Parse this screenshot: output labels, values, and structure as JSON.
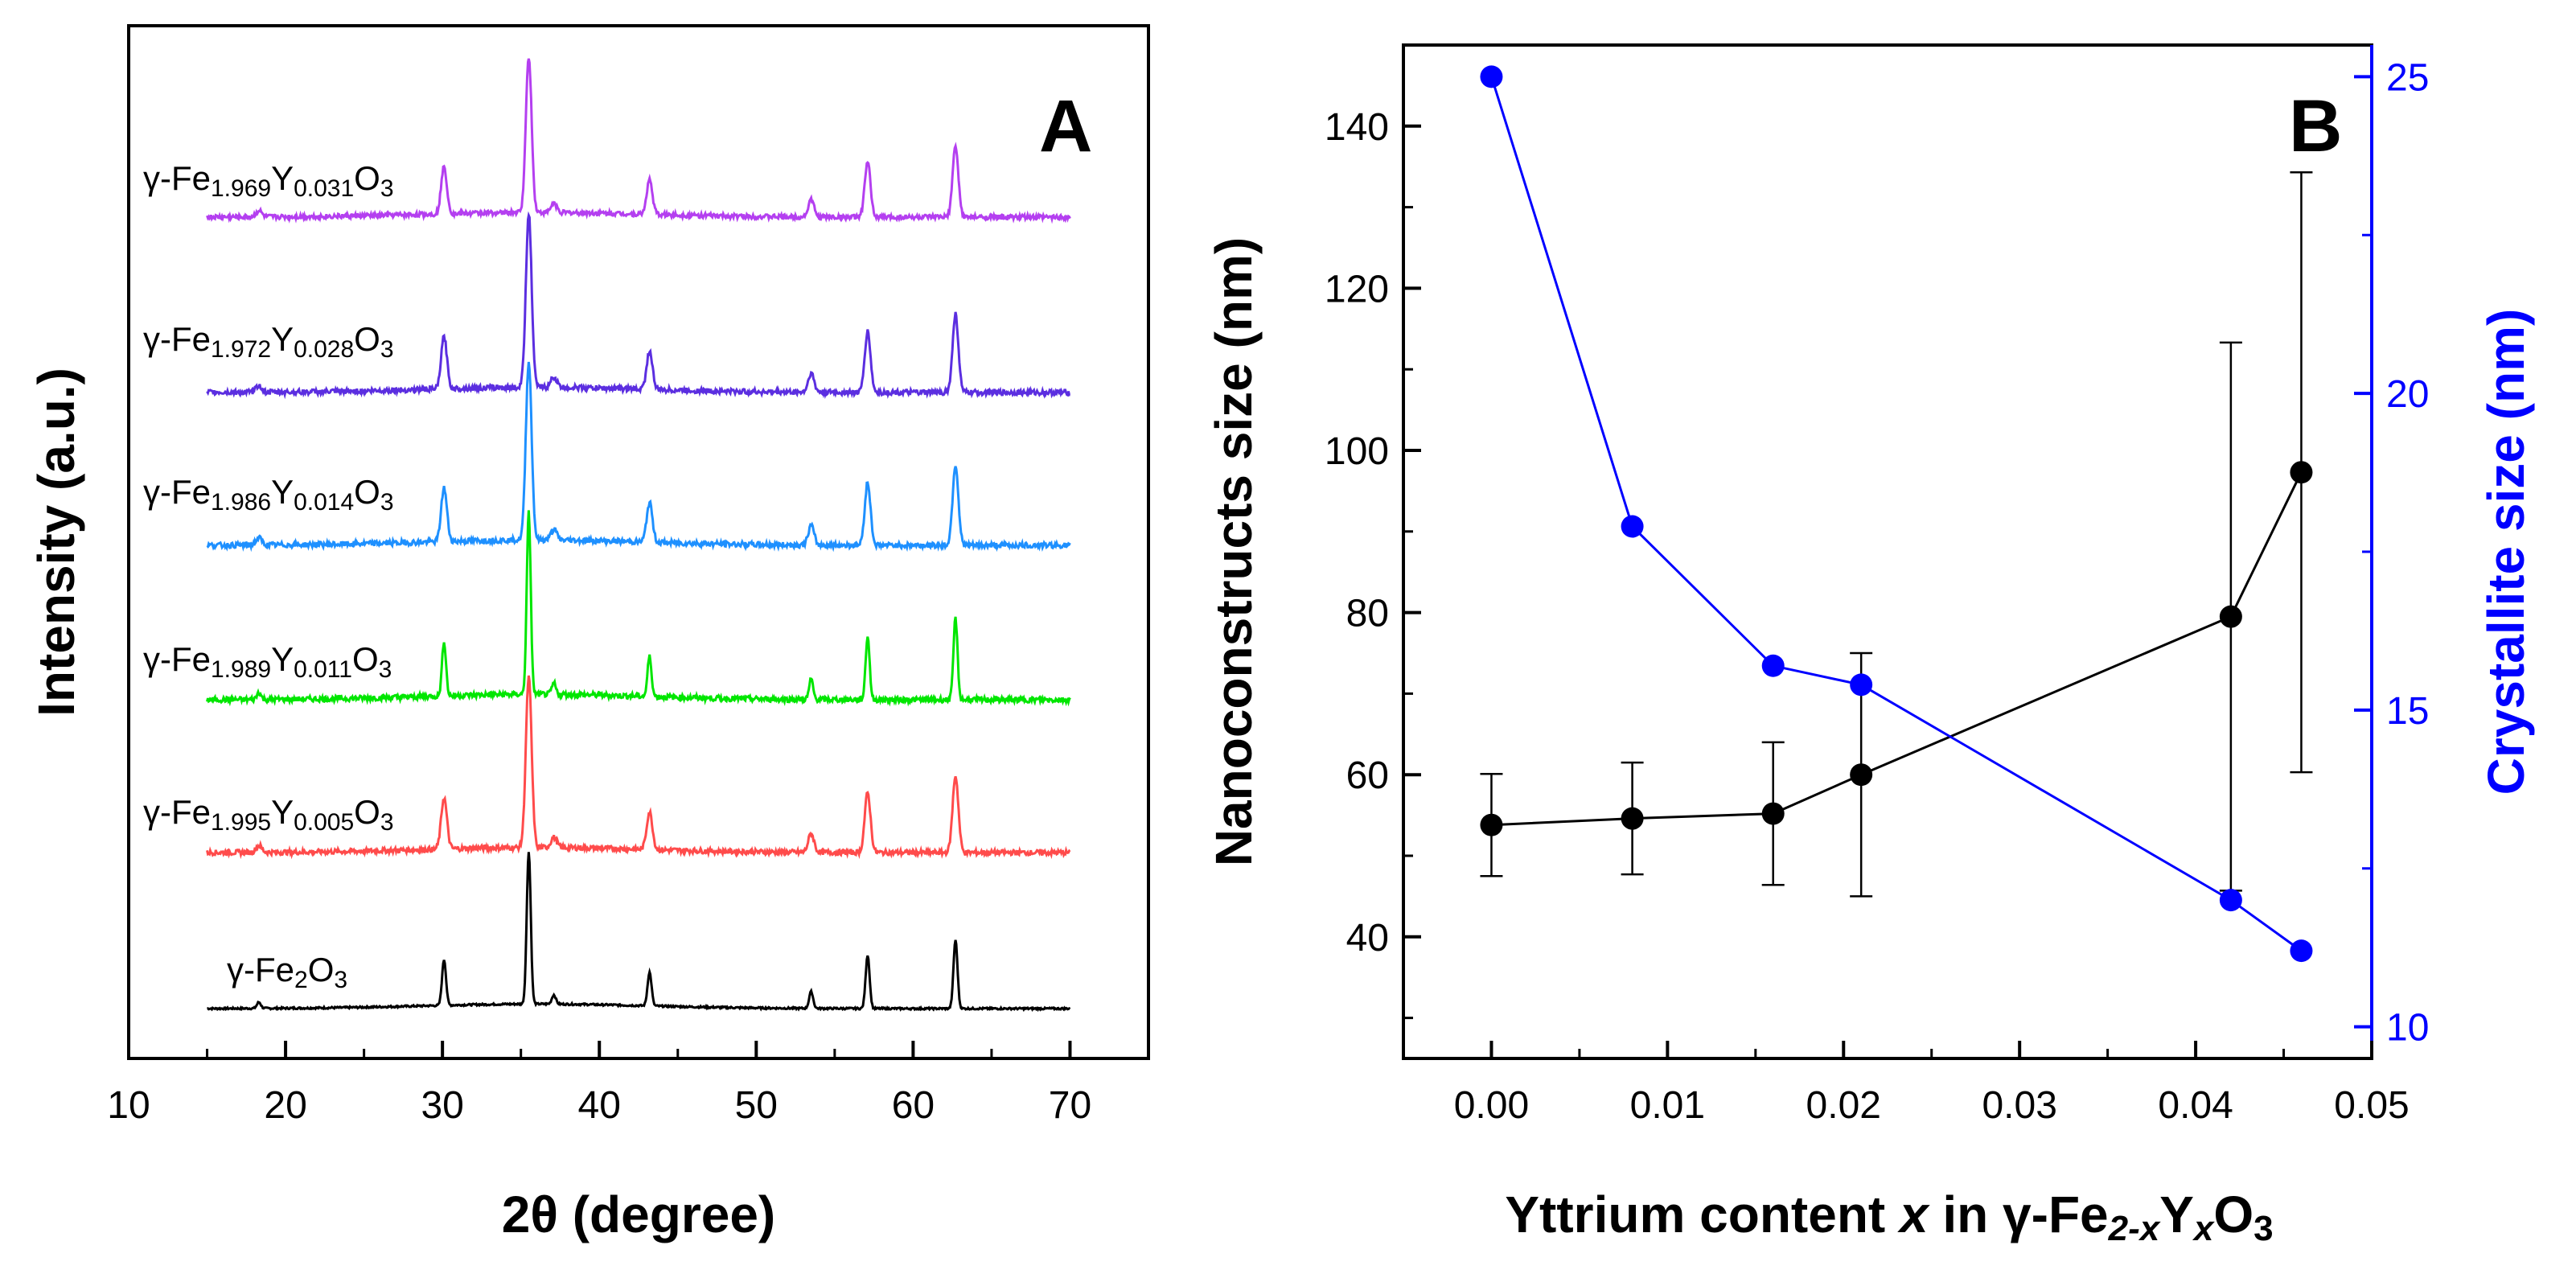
{
  "chart_data": [
    {
      "panel": "A",
      "type": "line",
      "xlabel_prefix": "2",
      "xlabel_symbol": "θ",
      "xlabel_suffix": " (degree)",
      "ylabel": "Intensity (a.u.)",
      "xlim": [
        10,
        75
      ],
      "xticks": [
        "10",
        "20",
        "30",
        "40",
        "50",
        "60",
        "70"
      ],
      "x_range": [
        15,
        70
      ],
      "peaks": [
        {
          "x": 18.3,
          "rel": 0.04
        },
        {
          "x": 30.1,
          "rel": 0.3
        },
        {
          "x": 35.5,
          "rel": 1.0
        },
        {
          "x": 37.1,
          "rel": 0.06
        },
        {
          "x": 43.2,
          "rel": 0.22
        },
        {
          "x": 53.5,
          "rel": 0.11
        },
        {
          "x": 57.1,
          "rel": 0.35
        },
        {
          "x": 62.7,
          "rel": 0.45
        }
      ],
      "series": [
        {
          "name": "γ-Fe2O3",
          "label_parts": [
            "γ-Fe",
            "2",
            "O",
            "3",
            "",
            ""
          ],
          "color": "#000000",
          "peak_height": 1.0
        },
        {
          "name": "γ-Fe1.995Y0.005O3",
          "label_parts": [
            "γ-Fe",
            "1.995",
            "Y",
            "0.005",
            "O",
            "3"
          ],
          "color": "#ff4b4b",
          "peak_height": 1.0
        },
        {
          "name": "γ-Fe1.989Y0.011O3",
          "label_parts": [
            "γ-Fe",
            "1.989",
            "Y",
            "0.011",
            "O",
            "3"
          ],
          "color": "#00e600",
          "peak_height": 1.0
        },
        {
          "name": "γ-Fe1.986Y0.014O3",
          "label_parts": [
            "γ-Fe",
            "1.986",
            "Y",
            "0.014",
            "O",
            "3"
          ],
          "color": "#1e90ff",
          "peak_height": 1.0
        },
        {
          "name": "γ-Fe1.972Y0.028O3",
          "label_parts": [
            "γ-Fe",
            "1.972",
            "Y",
            "0.028",
            "O",
            "3"
          ],
          "color": "#5b2ee0",
          "peak_height": 1.0
        },
        {
          "name": "γ-Fe1.969Y0.031O3",
          "label_parts": [
            "γ-Fe",
            "1.969",
            "Y",
            "0.031",
            "O",
            "3"
          ],
          "color": "#b43ff0",
          "peak_height": 1.0
        }
      ]
    },
    {
      "panel": "B",
      "type": "scatter",
      "xlabel_parts": [
        "Yttrium content ",
        "x",
        " in γ-Fe",
        "2-x",
        "Y",
        "x",
        "O",
        "3"
      ],
      "ylabel_left": "Nanoconstructs size (nm)",
      "ylabel_right": "Crystallite size (nm)",
      "xlim": [
        -0.005,
        0.05
      ],
      "xticks": [
        "0.00",
        "0.01",
        "0.02",
        "0.03",
        "0.04",
        "0.05"
      ],
      "ylim_left": [
        25,
        150
      ],
      "yticks_left": [
        "40",
        "60",
        "80",
        "100",
        "120",
        "140"
      ],
      "ylim_right": [
        9.5,
        25.5
      ],
      "yticks_right": [
        "10",
        "15",
        "20",
        "25"
      ],
      "series": [
        {
          "name": "Nanoconstructs size",
          "axis": "left",
          "color": "#000000",
          "x": [
            0.0,
            0.008,
            0.016,
            0.021,
            0.042,
            0.046
          ],
          "y": [
            53.8,
            54.6,
            55.2,
            60.0,
            79.5,
            97.3
          ],
          "yerr": [
            6.3,
            6.9,
            8.8,
            15.0,
            33.8,
            37.0
          ]
        },
        {
          "name": "Crystallite size",
          "axis": "right",
          "color": "#0000ff",
          "x": [
            0.0,
            0.008,
            0.016,
            0.021,
            0.042,
            0.046
          ],
          "y": [
            25.0,
            17.9,
            15.7,
            15.4,
            12.0,
            11.2
          ]
        }
      ]
    }
  ]
}
